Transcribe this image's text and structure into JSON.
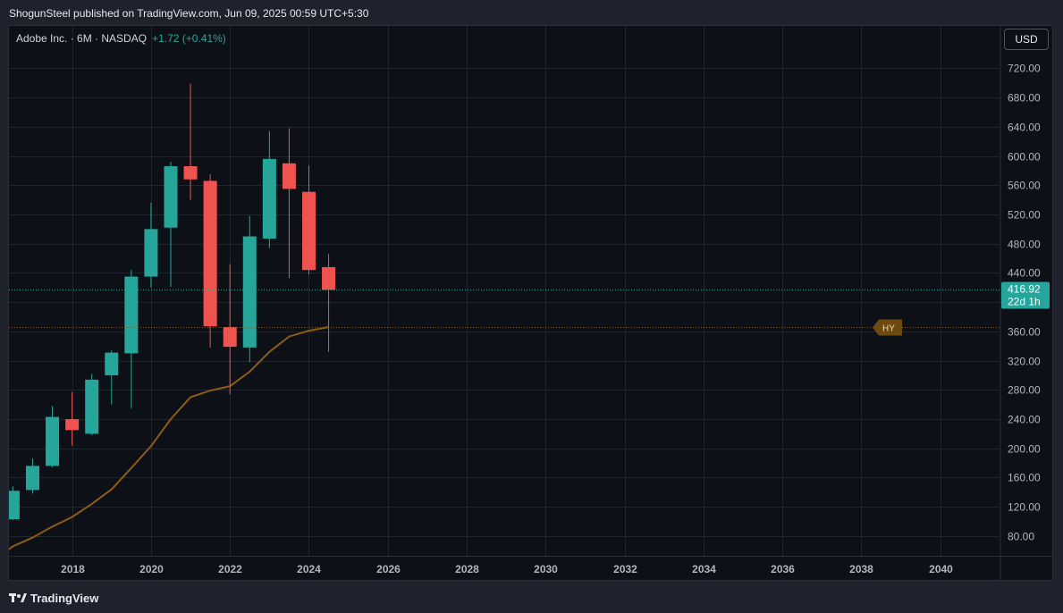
{
  "header": {
    "published_text": "ShogunSteel published on TradingView.com, Jun 09, 2025 00:59 UTC+5:30"
  },
  "legend": {
    "symbol_text": "Adobe Inc. · 6M · NASDAQ",
    "change_text": "+1.72 (+0.41%)"
  },
  "currency_button": "USD",
  "footer": {
    "brand": "TradingView"
  },
  "colors": {
    "up": "#26a69a",
    "down": "#ef5350",
    "ma": "#8d5c14",
    "background": "#0d1117",
    "grid": "#1f2630",
    "axis_text": "#b2b5be"
  },
  "chart_data": {
    "type": "candlestick",
    "period": "6M",
    "x_ticks": [
      "2018",
      "2020",
      "2022",
      "2024",
      "2026",
      "2028",
      "2030",
      "2032",
      "2034",
      "2036",
      "2038",
      "2040"
    ],
    "y_ticks": [
      "80.00",
      "120.00",
      "160.00",
      "200.00",
      "240.00",
      "280.00",
      "320.00",
      "360.00",
      "400.00",
      "440.00",
      "480.00",
      "520.00",
      "560.00",
      "600.00",
      "640.00",
      "680.00",
      "720.00"
    ],
    "ylim": [
      53,
      778
    ],
    "xlim": [
      2016.4,
      2041.5
    ],
    "candles": [
      {
        "x": "2016-07",
        "open": 103,
        "high": 148,
        "low": 102,
        "close": 142
      },
      {
        "x": "2017-01",
        "open": 143,
        "high": 186,
        "low": 138,
        "close": 176
      },
      {
        "x": "2017-07",
        "open": 176,
        "high": 258,
        "low": 174,
        "close": 243
      },
      {
        "x": "2018-01",
        "open": 240,
        "high": 277,
        "low": 204,
        "close": 225
      },
      {
        "x": "2018-07",
        "open": 220,
        "high": 302,
        "low": 218,
        "close": 294
      },
      {
        "x": "2019-01",
        "open": 300,
        "high": 334,
        "low": 260,
        "close": 331
      },
      {
        "x": "2019-07",
        "open": 330,
        "high": 444,
        "low": 255,
        "close": 435
      },
      {
        "x": "2020-01",
        "open": 435,
        "high": 536,
        "low": 420,
        "close": 500
      },
      {
        "x": "2020-07",
        "open": 502,
        "high": 592,
        "low": 421,
        "close": 586
      },
      {
        "x": "2021-01",
        "open": 586,
        "high": 699,
        "low": 540,
        "close": 568
      },
      {
        "x": "2021-07",
        "open": 566,
        "high": 575,
        "low": 338,
        "close": 367
      },
      {
        "x": "2022-01",
        "open": 366,
        "high": 452,
        "low": 274,
        "close": 339
      },
      {
        "x": "2022-07",
        "open": 338,
        "high": 518,
        "low": 318,
        "close": 490
      },
      {
        "x": "2023-01",
        "open": 487,
        "high": 634,
        "low": 474,
        "close": 596
      },
      {
        "x": "2023-07",
        "open": 590,
        "high": 638,
        "low": 433,
        "close": 555
      },
      {
        "x": "2024-01",
        "open": 551,
        "high": 587,
        "low": 438,
        "close": 444
      },
      {
        "x": "2024-07",
        "open": 448,
        "high": 466,
        "low": 332,
        "close": 416.92
      }
    ],
    "ma": {
      "label": "HY",
      "x": [
        "2016-07",
        "2017-01",
        "2017-07",
        "2018-01",
        "2018-07",
        "2019-01",
        "2019-07",
        "2020-01",
        "2020-07",
        "2021-01",
        "2021-07",
        "2022-01",
        "2022-07",
        "2023-01",
        "2023-07",
        "2024-01",
        "2024-07"
      ],
      "values": [
        66,
        78,
        93,
        106,
        124,
        144,
        173,
        203,
        240,
        270,
        279,
        285,
        305,
        332,
        353,
        361,
        366
      ]
    },
    "last_price": {
      "value": "416.92",
      "countdown": "22d 1h"
    }
  }
}
